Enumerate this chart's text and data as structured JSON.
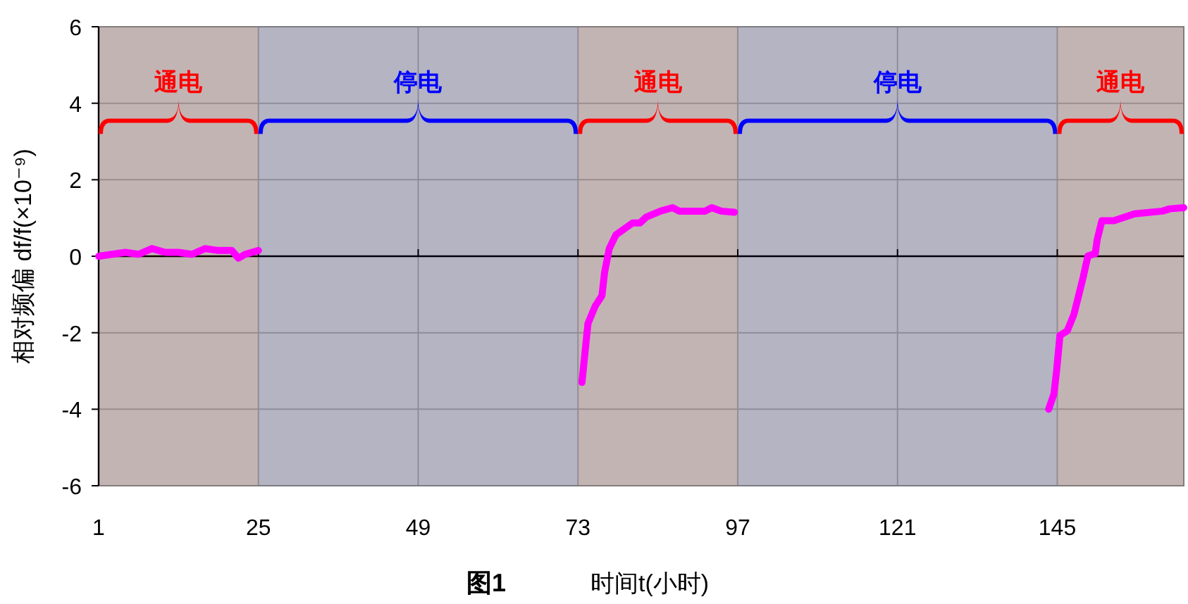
{
  "chart_data": {
    "type": "line",
    "ylabel": "相对频偏 df/f(×10⁻⁹)",
    "xlabel": "时间t(小时)",
    "annotations": [
      "图1"
    ],
    "xlim": [
      1,
      164
    ],
    "xticks": [
      1,
      25,
      49,
      73,
      97,
      121,
      145
    ],
    "ylim": [
      -6,
      6
    ],
    "yticks": [
      -6,
      -4,
      -2,
      0,
      2,
      4,
      6
    ],
    "grid": true,
    "marker": "none",
    "line_style": "solid",
    "series": [
      {
        "color": "#ff00ff",
        "x": [
          1,
          3,
          5,
          7,
          9,
          11,
          13,
          15,
          17,
          19,
          21,
          22,
          23,
          25
        ],
        "values": [
          0.0,
          0.05,
          0.1,
          0.05,
          0.2,
          0.1,
          0.1,
          0.05,
          0.2,
          0.15,
          0.15,
          -0.05,
          0.05,
          0.15
        ]
      },
      {
        "color": "#ff00ff",
        "x": [
          73.6,
          74.5,
          75.6,
          76.6,
          77,
          77.7,
          78.7,
          81.2,
          82.3,
          83.3,
          85.4,
          87.2,
          88.2,
          92.1,
          93.1,
          94.5,
          96.5
        ],
        "values": [
          -3.3,
          -1.76,
          -1.3,
          -1.03,
          -0.42,
          0.2,
          0.56,
          0.87,
          0.87,
          1.03,
          1.18,
          1.27,
          1.18,
          1.18,
          1.27,
          1.18,
          1.15
        ]
      },
      {
        "color": "#ff00ff",
        "x": [
          143.7,
          144.5,
          144.9,
          145.4,
          146.5,
          147.5,
          148.9,
          149.6,
          150.7,
          151,
          151.7,
          153.5,
          156.6,
          160.8,
          161.9,
          164
        ],
        "values": [
          -4.0,
          -3.6,
          -2.99,
          -2.07,
          -1.95,
          -1.52,
          -0.54,
          0.01,
          0.07,
          0.44,
          0.93,
          0.93,
          1.11,
          1.18,
          1.24,
          1.27
        ]
      }
    ],
    "bands": [
      {
        "axis": "x",
        "from": 1,
        "to": 25,
        "label": "通电",
        "color": "#ff0000"
      },
      {
        "axis": "x",
        "from": 25,
        "to": 73,
        "label": "停电",
        "color": "#0000ff"
      },
      {
        "axis": "x",
        "from": 73,
        "to": 97,
        "label": "通电",
        "color": "#ff0000"
      },
      {
        "axis": "x",
        "from": 97,
        "to": 145,
        "label": "停电",
        "color": "#0000ff"
      },
      {
        "axis": "x",
        "from": 145,
        "to": 164,
        "label": "通电",
        "color": "#ff0000"
      }
    ]
  }
}
